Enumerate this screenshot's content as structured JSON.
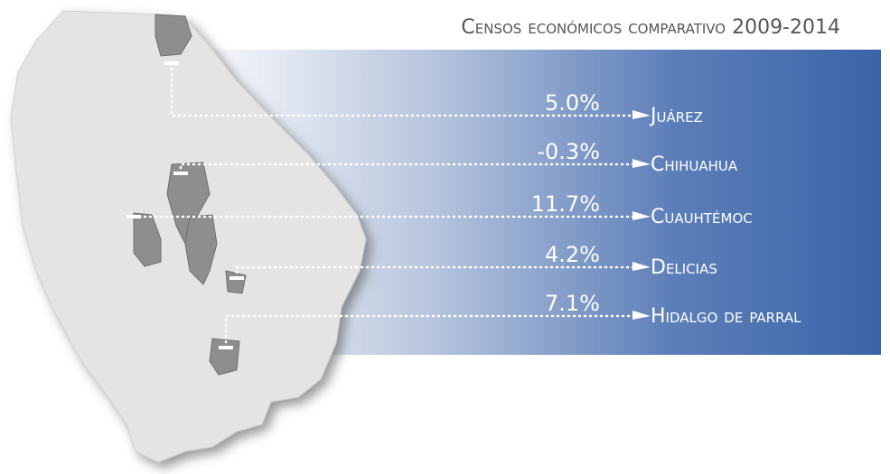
{
  "title": "Censos económicos comparativo 2009-2014",
  "items": [
    {
      "value": "5.0%",
      "name": "Juárez"
    },
    {
      "value": "-0.3%",
      "name": "Chihuahua"
    },
    {
      "value": "11.7%",
      "name": "Cuauhtémoc"
    },
    {
      "value": "4.2%",
      "name": "Delicias"
    },
    {
      "value": "7.1%",
      "name": "Hidalgo de parral"
    }
  ]
}
